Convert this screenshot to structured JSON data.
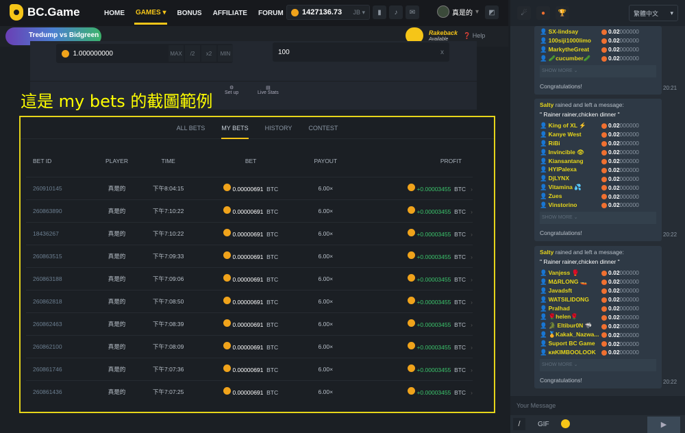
{
  "header": {
    "brand": "BC.Game",
    "nav": [
      "HOME",
      "GAMES",
      "BONUS",
      "AFFILIATE",
      "FORUM"
    ],
    "balance": "1427136.73",
    "currency": "JB",
    "username": "真是的"
  },
  "banner": {
    "promo": "Tredump vs Bidgreen",
    "rakeback": "Rakeback",
    "rakeback_sub": "Available",
    "help": "Help"
  },
  "bet_panel": {
    "amount": "1.000000000",
    "buttons": [
      "MAX",
      "/2",
      "x2",
      "MIN"
    ],
    "multiplier": "100",
    "mult_suffix": "x",
    "setup": "Set up",
    "live_stats": "Live Stats"
  },
  "caption": "這是 my  bets 的截圖範例",
  "bets": {
    "tabs": [
      "ALL BETS",
      "MY BETS",
      "HISTORY",
      "CONTEST"
    ],
    "active_tab": "MY BETS",
    "columns": [
      "BET ID",
      "PLAYER",
      "TIME",
      "BET",
      "PAYOUT",
      "PROFIT"
    ],
    "rows": [
      [
        "260910145",
        "真是的",
        "下午8:04:15",
        "0.00000691",
        "BTC",
        "6.00×",
        "+0.00003455",
        "BTC"
      ],
      [
        "260863890",
        "真是的",
        "下午7:10:22",
        "0.00000691",
        "BTC",
        "6.00×",
        "+0.00003455",
        "BTC"
      ],
      [
        "18436267",
        "真是的",
        "下午7:10:22",
        "0.00000691",
        "BTC",
        "6.00×",
        "+0.00003455",
        "BTC"
      ],
      [
        "260863515",
        "真是的",
        "下午7:09:33",
        "0.00000691",
        "BTC",
        "6.00×",
        "+0.00003455",
        "BTC"
      ],
      [
        "260863188",
        "真是的",
        "下午7:09:06",
        "0.00000691",
        "BTC",
        "6.00×",
        "+0.00003455",
        "BTC"
      ],
      [
        "260862818",
        "真是的",
        "下午7:08:50",
        "0.00000691",
        "BTC",
        "6.00×",
        "+0.00003455",
        "BTC"
      ],
      [
        "260862463",
        "真是的",
        "下午7:08:39",
        "0.00000691",
        "BTC",
        "6.00×",
        "+0.00003455",
        "BTC"
      ],
      [
        "260862100",
        "真是的",
        "下午7:08:09",
        "0.00000691",
        "BTC",
        "6.00×",
        "+0.00003455",
        "BTC"
      ],
      [
        "260861746",
        "真是的",
        "下午7:07:36",
        "0.00000691",
        "BTC",
        "6.00×",
        "+0.00003455",
        "BTC"
      ],
      [
        "260861436",
        "真是的",
        "下午7:07:25",
        "0.00000691",
        "BTC",
        "6.00×",
        "+0.00003455",
        "BTC"
      ]
    ]
  },
  "chat": {
    "language": "繁體中文",
    "amount_bold": "0.02",
    "amount_rest": "000000",
    "messages": [
      {
        "users": [
          "SX-lindsay",
          "100siji1000limo",
          "MarkytheGreat",
          "🥒cucumber🥒"
        ],
        "show_more": "SHOW MORE",
        "footer": "Congratulations!",
        "time": "20:21"
      },
      {
        "sender": "Salty",
        "action": "rained and left a message:",
        "quote": "\" Rainer rainer,chicken dinner \"",
        "users": [
          "King of XL ⚡",
          "Kanye West",
          "RiBi",
          "Invincible 👁",
          "Kiansantang",
          "HYIPalexa",
          "DjLYNX",
          "Vitamina 💦",
          "Zues",
          "Vinstorino"
        ],
        "show_more": "SHOW MORE",
        "footer": "Congratulations!",
        "time": "20:22"
      },
      {
        "sender": "Salty",
        "action": "rained and left a message:",
        "quote": "\" Rainer rainer,chicken dinner \"",
        "users": [
          "Vanjess 🥊",
          "MΔRLONG 🚤",
          "Javadsft",
          "WATSILIDONG",
          "Pralhad",
          "🌹helen🌹",
          "🐊 Eltibur0N 🦈",
          "🏅Kakak_Nazwa...",
          "Suport BC Game",
          "ᴋʀKIMBOOLOOK"
        ],
        "show_more": "SHOW MORE",
        "footer": "Congratulations!",
        "time": "20:22"
      }
    ],
    "input_placeholder": "Your Message",
    "slash": "/",
    "gif": "GIF"
  }
}
